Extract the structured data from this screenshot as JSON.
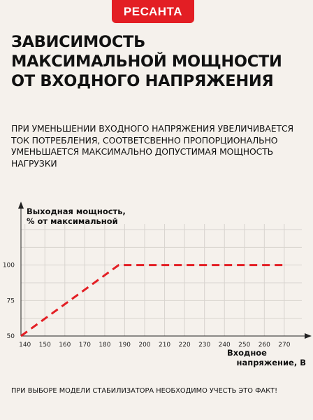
{
  "brand": {
    "logo_text": "РЕСАНТА",
    "logo_color": "#e31e24"
  },
  "title": "Зависимость максимальной мощности от входного напряжения",
  "subtitle": "При уменьшении входного напряжения увеличивается ток потребления, соответсвенно пропорционально уменьшается максимально допустимая мощность нагрузки",
  "note": "При выборе модели стабилизатора необходимо учесть это факт!",
  "chart_data": {
    "type": "line",
    "ylabel_line1": "Выходная мощность,",
    "ylabel_line2": "% от максимальной",
    "xlabel_line1": "Входное",
    "xlabel_line2": "напряжение, В",
    "x_ticks": [
      140,
      150,
      160,
      170,
      180,
      190,
      200,
      210,
      220,
      230,
      240,
      250,
      260,
      270
    ],
    "y_ticks": [
      50,
      75,
      100
    ],
    "xlim": [
      138,
      276
    ],
    "ylim": [
      50,
      125
    ],
    "grid": true,
    "line_color": "#e31e24",
    "line_style": "dashed",
    "series": [
      {
        "x": [
          138,
          187,
          270
        ],
        "y": [
          50,
          100,
          100
        ]
      }
    ]
  }
}
